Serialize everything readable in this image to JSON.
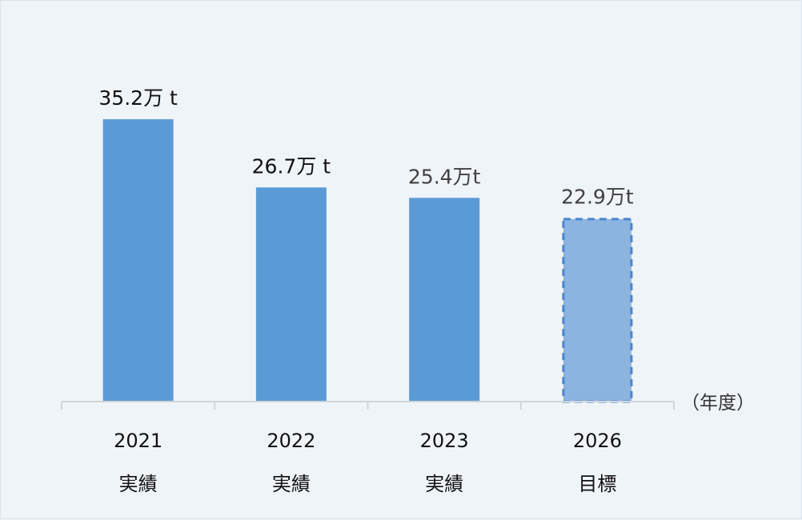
{
  "chart_data": {
    "type": "bar",
    "categories": [
      "2021",
      "2022",
      "2023",
      "2026"
    ],
    "category_sublabels": [
      "実績",
      "実績",
      "実績",
      "目標"
    ],
    "values": [
      35.2,
      26.7,
      25.4,
      22.9
    ],
    "value_labels": [
      "35.2万 t",
      "26.7万 t",
      "25.4万t",
      "22.9万t"
    ],
    "bar_styles": [
      "actual",
      "actual",
      "actual",
      "target"
    ],
    "x_unit_label": "（年度）",
    "ylim": [
      0,
      38
    ],
    "grid": false,
    "colors": {
      "actual": "#5b9bd5",
      "target_fill": "#8bb4df",
      "target_stroke": "#4a86cf",
      "axis": "#d0d5da",
      "label_dark": "#111111",
      "label_gray": "#404040"
    }
  }
}
